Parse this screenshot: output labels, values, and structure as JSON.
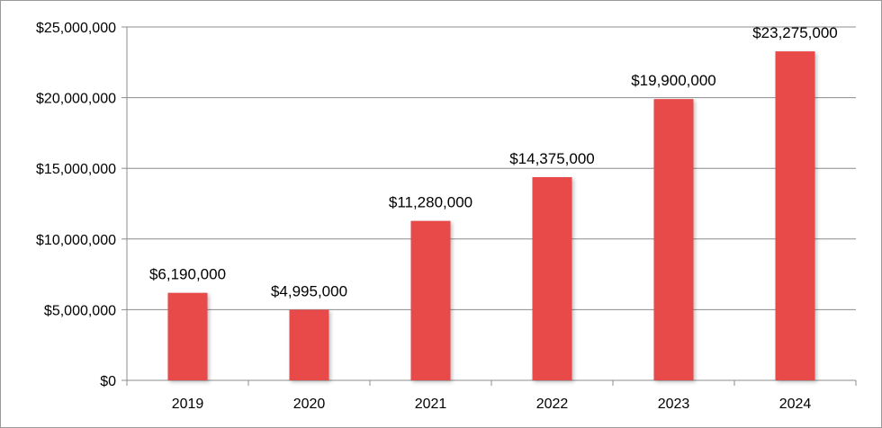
{
  "chart_data": {
    "type": "bar",
    "categories": [
      "2019",
      "2020",
      "2021",
      "2022",
      "2023",
      "2024"
    ],
    "values": [
      6190000,
      4995000,
      11280000,
      14375000,
      19900000,
      23275000
    ],
    "data_labels": [
      "$6,190,000",
      "$4,995,000",
      "$11,280,000",
      "$14,375,000",
      "$19,900,000",
      "$23,275,000"
    ],
    "y_ticks": [
      {
        "value": 0,
        "label": "$0"
      },
      {
        "value": 5000000,
        "label": "$5,000,000"
      },
      {
        "value": 10000000,
        "label": "$10,000,000"
      },
      {
        "value": 15000000,
        "label": "$15,000,000"
      },
      {
        "value": 20000000,
        "label": "$20,000,000"
      },
      {
        "value": 25000000,
        "label": "$25,000,000"
      }
    ],
    "ylim": [
      0,
      25000000
    ],
    "grid": true,
    "legend": "none",
    "bar_color": "#e84848",
    "gridline_color": "#8c8c8c"
  }
}
